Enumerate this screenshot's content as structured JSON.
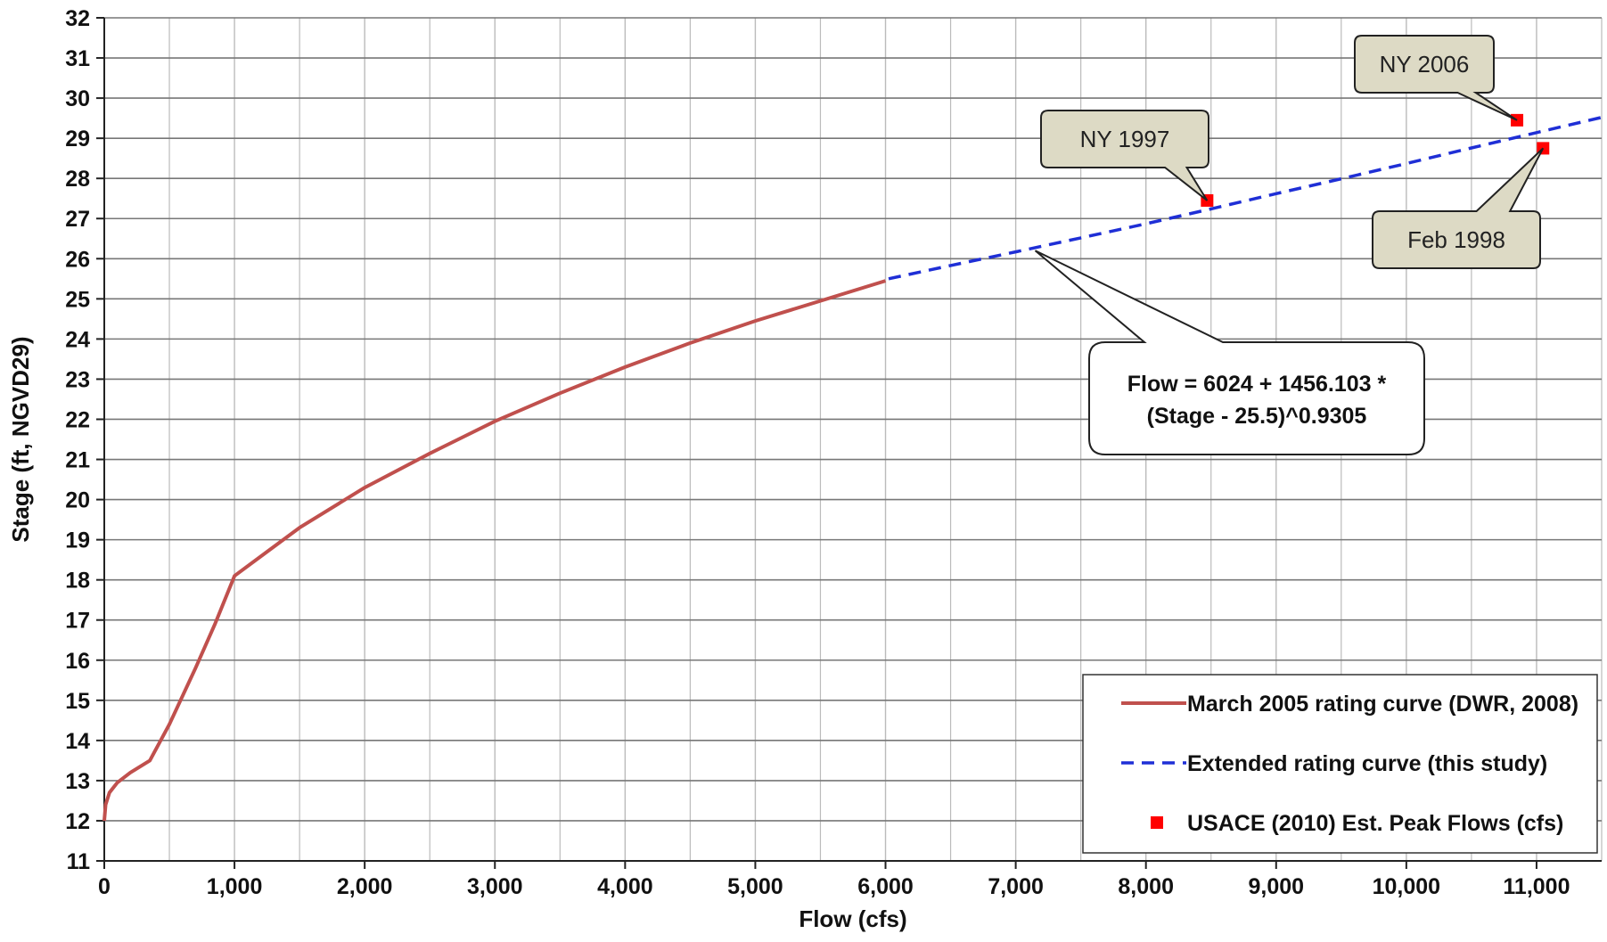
{
  "chart_data": {
    "type": "line",
    "xlabel": "Flow (cfs)",
    "ylabel": "Stage (ft, NGVD29)",
    "xlim": [
      0,
      11500
    ],
    "ylim": [
      11,
      32
    ],
    "x_ticks": [
      0,
      1000,
      2000,
      3000,
      4000,
      5000,
      6000,
      7000,
      8000,
      9000,
      10000,
      11000
    ],
    "x_tick_labels": [
      "0",
      "1,000",
      "2,000",
      "3,000",
      "4,000",
      "5,000",
      "6,000",
      "7,000",
      "8,000",
      "9,000",
      "10,000",
      "11,000"
    ],
    "y_ticks": [
      11,
      12,
      13,
      14,
      15,
      16,
      17,
      18,
      19,
      20,
      21,
      22,
      23,
      24,
      25,
      26,
      27,
      28,
      29,
      30,
      31,
      32
    ],
    "x_minor_step": 500,
    "grid": true,
    "legend_position": "bottom-right",
    "series": [
      {
        "name": "March 2005 rating curve (DWR, 2008)",
        "style": "line",
        "color": "#c0504d",
        "points": [
          [
            0,
            12.0
          ],
          [
            10,
            12.4
          ],
          [
            40,
            12.7
          ],
          [
            100,
            12.95
          ],
          [
            200,
            13.2
          ],
          [
            350,
            13.5
          ],
          [
            500,
            14.4
          ],
          [
            700,
            15.8
          ],
          [
            850,
            16.9
          ],
          [
            1000,
            18.1
          ],
          [
            1250,
            18.7
          ],
          [
            1500,
            19.3
          ],
          [
            2000,
            20.3
          ],
          [
            2500,
            21.15
          ],
          [
            3000,
            21.95
          ],
          [
            3500,
            22.65
          ],
          [
            4000,
            23.3
          ],
          [
            4500,
            23.9
          ],
          [
            5000,
            24.45
          ],
          [
            5500,
            24.95
          ],
          [
            6000,
            25.45
          ]
        ]
      },
      {
        "name": "Extended rating curve (this study)",
        "style": "dashed",
        "color": "#1f2fd6",
        "points": [
          [
            6024,
            25.5
          ],
          [
            6500,
            25.83
          ],
          [
            7000,
            26.17
          ],
          [
            7500,
            26.52
          ],
          [
            8000,
            26.87
          ],
          [
            8500,
            27.24
          ],
          [
            9000,
            27.62
          ],
          [
            9500,
            27.99
          ],
          [
            10000,
            28.37
          ],
          [
            10500,
            28.76
          ],
          [
            11000,
            29.14
          ],
          [
            11500,
            29.52
          ]
        ]
      },
      {
        "name": "USACE (2010) Est. Peak Flows (cfs)",
        "style": "marker",
        "color": "#ff0000",
        "points": [
          [
            8470,
            27.45
          ],
          [
            10850,
            29.45
          ],
          [
            11050,
            28.75
          ]
        ]
      }
    ],
    "annotations": [
      {
        "label": "NY  1997",
        "point_index": 0
      },
      {
        "label": "NY 2006",
        "point_index": 1
      },
      {
        "label": "Feb  1998",
        "point_index": 2
      }
    ],
    "formula": {
      "line1": "Flow = 6024 + 1456.103 *",
      "line2": "(Stage - 25.5)^0.9305",
      "anchor": [
        7150,
        26.2
      ]
    },
    "colors": {
      "callout_fill": "#dddac5",
      "grid_major": "#777777",
      "grid_minor": "#bbbbbb"
    }
  }
}
